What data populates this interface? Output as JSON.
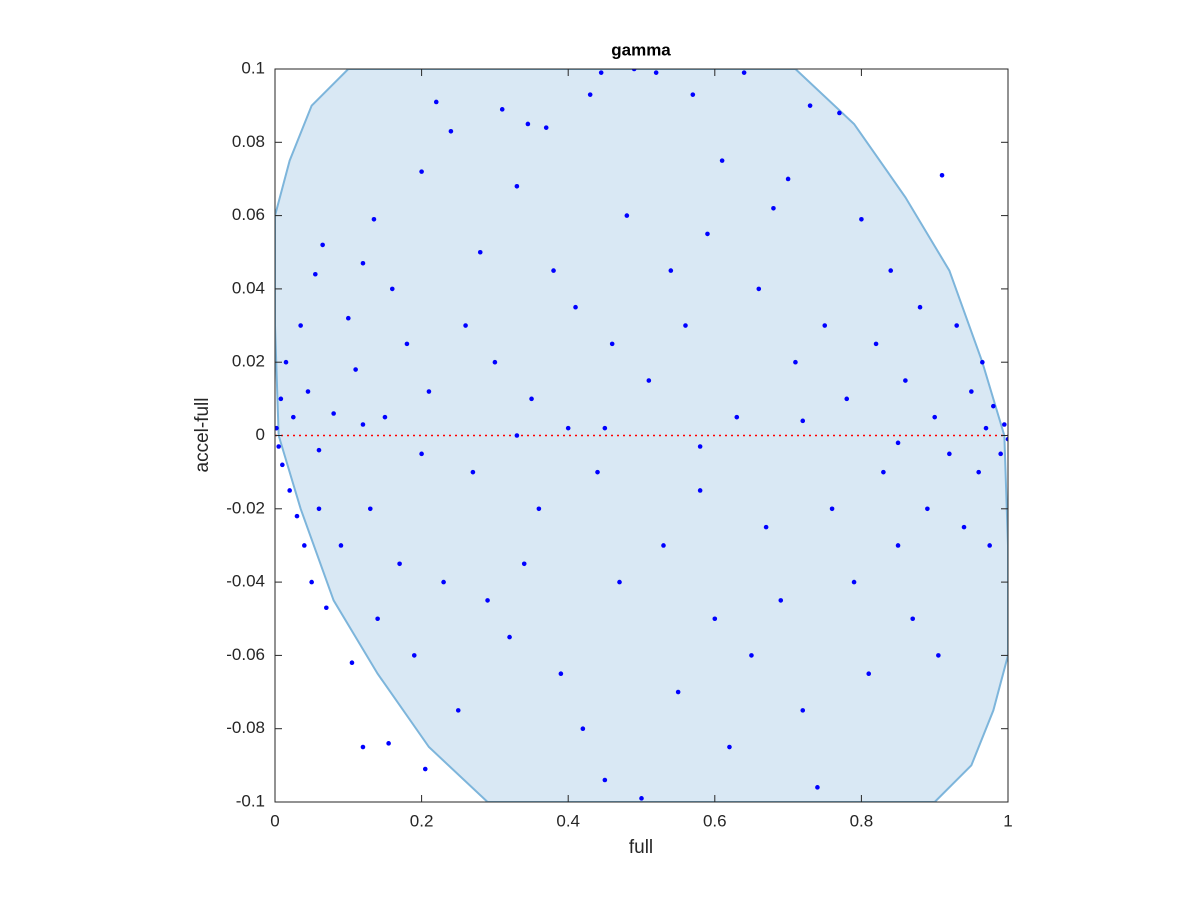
{
  "chart_data": {
    "type": "scatter",
    "title": "gamma",
    "x_label": "full",
    "y_label": "accel-full",
    "xlim": [
      0,
      1
    ],
    "ylim": [
      -0.1,
      0.1
    ],
    "xticks": [
      0,
      0.2,
      0.4,
      0.6,
      0.8,
      1
    ],
    "yticks": [
      -0.1,
      -0.08,
      -0.06,
      -0.04,
      -0.02,
      0,
      0.02,
      0.04,
      0.06,
      0.08,
      0.1
    ],
    "grid": false,
    "ellipse": {
      "color": "#7db5db",
      "fill": "#d9e8f4",
      "x": [
        0.1,
        0.71,
        0.79,
        0.86,
        0.92,
        0.965,
        0.995,
        1.0,
        1.0,
        0.98,
        0.95,
        0.9,
        0.29,
        0.21,
        0.14,
        0.08,
        0.035,
        0.005,
        0,
        0,
        0.02,
        0.05
      ],
      "values": [
        0.1,
        0.1,
        0.085,
        0.065,
        0.045,
        0.02,
        0,
        -0.03,
        -0.06,
        -0.075,
        -0.09,
        -0.1,
        -0.1,
        -0.085,
        -0.065,
        -0.045,
        -0.02,
        0,
        0.03,
        0.06,
        0.075,
        0.09
      ]
    },
    "reference_line": {
      "color": "#ff0000",
      "x": [
        0,
        1
      ],
      "values": [
        0,
        0
      ]
    },
    "series": [
      {
        "color": "#0000ff",
        "x": [
          0.002,
          0.005,
          0.008,
          0.01,
          0.015,
          0.02,
          0.025,
          0.03,
          0.035,
          0.04,
          0.045,
          0.05,
          0.055,
          0.06,
          0.065,
          0.07,
          0.08,
          0.09,
          0.1,
          0.105,
          0.11,
          0.12,
          0.12,
          0.13,
          0.135,
          0.14,
          0.15,
          0.155,
          0.16,
          0.17,
          0.18,
          0.19,
          0.2,
          0.205,
          0.21,
          0.22,
          0.23,
          0.24,
          0.25,
          0.26,
          0.27,
          0.28,
          0.29,
          0.3,
          0.31,
          0.32,
          0.33,
          0.34,
          0.345,
          0.35,
          0.36,
          0.37,
          0.38,
          0.39,
          0.4,
          0.41,
          0.42,
          0.43,
          0.44,
          0.445,
          0.45,
          0.46,
          0.47,
          0.48,
          0.49,
          0.5,
          0.51,
          0.52,
          0.53,
          0.54,
          0.55,
          0.56,
          0.57,
          0.58,
          0.59,
          0.6,
          0.61,
          0.62,
          0.63,
          0.64,
          0.65,
          0.66,
          0.67,
          0.68,
          0.69,
          0.7,
          0.71,
          0.72,
          0.73,
          0.74,
          0.75,
          0.76,
          0.77,
          0.78,
          0.79,
          0.8,
          0.81,
          0.82,
          0.83,
          0.84,
          0.85,
          0.86,
          0.87,
          0.88,
          0.89,
          0.9,
          0.905,
          0.91,
          0.92,
          0.93,
          0.94,
          0.95,
          0.96,
          0.965,
          0.97,
          0.975,
          0.98,
          0.99,
          0.995,
          1.0,
          0.2,
          0.33,
          0.45,
          0.58,
          0.72,
          0.85,
          0.12,
          0.06
        ],
        "values": [
          0.002,
          -0.003,
          0.01,
          -0.008,
          0.02,
          -0.015,
          0.005,
          -0.022,
          0.03,
          -0.03,
          0.012,
          -0.04,
          0.044,
          -0.02,
          0.052,
          -0.047,
          0.006,
          -0.03,
          0.032,
          -0.062,
          0.018,
          -0.085,
          0.047,
          -0.02,
          0.059,
          -0.05,
          0.005,
          -0.084,
          0.04,
          -0.035,
          0.025,
          -0.06,
          0.072,
          -0.091,
          0.012,
          0.091,
          -0.04,
          0.083,
          -0.075,
          0.03,
          -0.01,
          0.05,
          -0.045,
          0.02,
          0.089,
          -0.055,
          0.068,
          -0.035,
          0.085,
          0.01,
          -0.02,
          0.084,
          0.045,
          -0.065,
          0.002,
          0.035,
          -0.08,
          0.093,
          -0.01,
          0.099,
          -0.094,
          0.025,
          -0.04,
          0.06,
          0.1,
          -0.099,
          0.015,
          0.099,
          -0.03,
          0.045,
          -0.07,
          0.03,
          0.093,
          -0.015,
          0.055,
          -0.05,
          0.075,
          -0.085,
          0.005,
          0.099,
          -0.06,
          0.04,
          -0.025,
          0.062,
          -0.045,
          0.07,
          0.02,
          -0.075,
          0.09,
          -0.096,
          0.03,
          -0.02,
          0.088,
          0.01,
          -0.04,
          0.059,
          -0.065,
          0.025,
          -0.01,
          0.045,
          -0.03,
          0.015,
          -0.05,
          0.035,
          -0.02,
          0.005,
          -0.06,
          0.071,
          -0.005,
          0.03,
          -0.025,
          0.012,
          -0.01,
          0.02,
          0.002,
          -0.03,
          0.008,
          -0.005,
          0.003,
          -0.001,
          -0.005,
          0.0,
          0.002,
          -0.003,
          0.004,
          -0.002,
          0.003,
          -0.004
        ]
      }
    ]
  }
}
